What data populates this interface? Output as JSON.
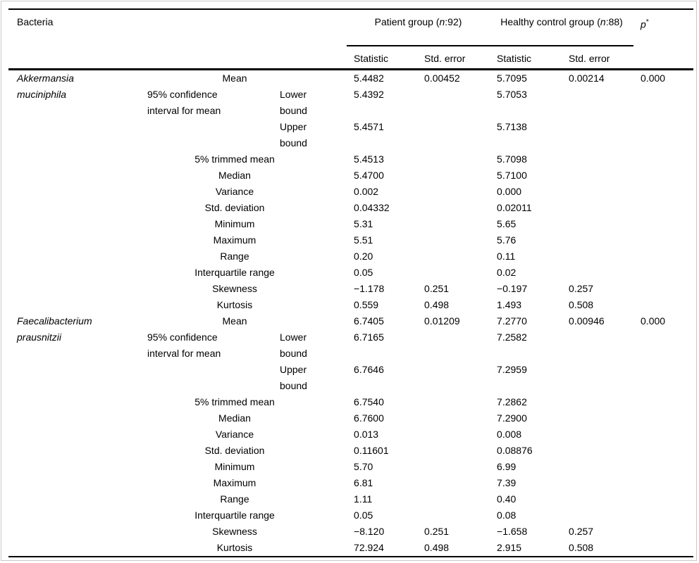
{
  "header": {
    "bacteria": "Bacteria",
    "patient_prefix": "Patient group (",
    "patient_n": "n",
    "patient_suffix": ":92)",
    "healthy_prefix": "Healthy control group (",
    "healthy_n": "n",
    "healthy_suffix": ":88)",
    "p": "p",
    "p_asterisk": "*",
    "statistic": "Statistic",
    "std_error": "Std. error"
  },
  "stat_labels": {
    "mean": "Mean",
    "ci": "95% confidence\ninterval for mean",
    "lower": "Lower\nbound",
    "upper": "Upper\nbound",
    "trimmed": "5% trimmed mean",
    "median": "Median",
    "variance": "Variance",
    "std_dev": "Std. deviation",
    "min": "Minimum",
    "max": "Maximum",
    "range": "Range",
    "iqr": "Interquartile range",
    "skew": "Skewness",
    "kurt": "Kurtosis"
  },
  "sections": [
    {
      "name": "Akkermansia\nmuciniphila",
      "p": "0.000",
      "values": {
        "mean": [
          "5.4482",
          "0.00452",
          "5.7095",
          "0.00214"
        ],
        "lower": [
          "5.4392",
          "5.7053"
        ],
        "upper": [
          "5.4571",
          "5.7138"
        ],
        "trimmed": [
          "5.4513",
          "5.7098"
        ],
        "median": [
          "5.4700",
          "5.7100"
        ],
        "variance": [
          "0.002",
          "0.000"
        ],
        "std_dev": [
          "0.04332",
          "0.02011"
        ],
        "min": [
          "5.31",
          "5.65"
        ],
        "max": [
          "5.51",
          "5.76"
        ],
        "range": [
          "0.20",
          "0.11"
        ],
        "iqr": [
          "0.05",
          "0.02"
        ],
        "skew": [
          "−1.178",
          "0.251",
          "−0.197",
          "0.257"
        ],
        "kurt": [
          "0.559",
          "0.498",
          "1.493",
          "0.508"
        ]
      }
    },
    {
      "name": "Faecalibacterium\nprausnitzii",
      "p": "0.000",
      "values": {
        "mean": [
          "6.7405",
          "0.01209",
          "7.2770",
          "0.00946"
        ],
        "lower": [
          "6.7165",
          "7.2582"
        ],
        "upper": [
          "6.7646",
          "7.2959"
        ],
        "trimmed": [
          "6.7540",
          "7.2862"
        ],
        "median": [
          "6.7600",
          "7.2900"
        ],
        "variance": [
          "0.013",
          "0.008"
        ],
        "std_dev": [
          "0.11601",
          "0.08876"
        ],
        "min": [
          "5.70",
          "6.99"
        ],
        "max": [
          "6.81",
          "7.39"
        ],
        "range": [
          "1.11",
          "0.40"
        ],
        "iqr": [
          "0.05",
          "0.08"
        ],
        "skew": [
          "−8.120",
          "0.251",
          "−1.658",
          "0.257"
        ],
        "kurt": [
          "72.924",
          "0.498",
          "2.915",
          "0.508"
        ]
      }
    }
  ]
}
